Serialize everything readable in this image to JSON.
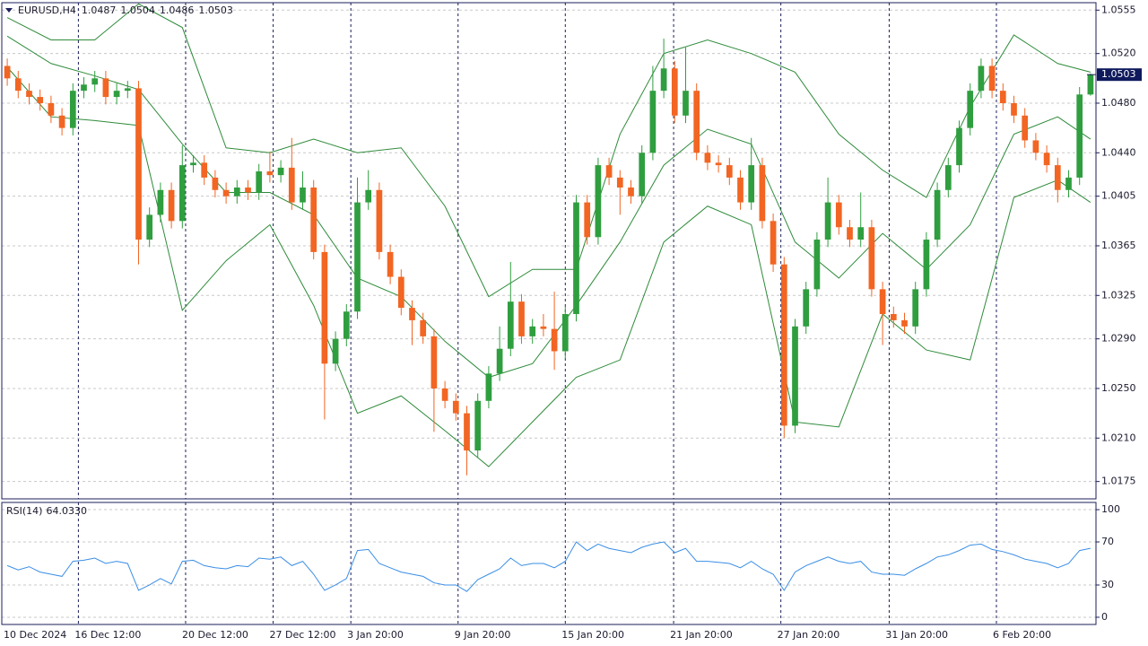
{
  "chart_data": [
    {
      "type": "candlestick",
      "title": "EURUSD,H4",
      "x": [
        0,
        1,
        2,
        3,
        4,
        5,
        6,
        7,
        8,
        9,
        10,
        11,
        12,
        13,
        14,
        15,
        16,
        17,
        18,
        19,
        20,
        21,
        22,
        23,
        24,
        25,
        26,
        27,
        28,
        29,
        30,
        31,
        32,
        33,
        34,
        35,
        36,
        37,
        38,
        39,
        40,
        41,
        42,
        43,
        44,
        45,
        46,
        47,
        48,
        49,
        50,
        51,
        52,
        53,
        54,
        55,
        56,
        57,
        58,
        59,
        60,
        61,
        62,
        63,
        64,
        65,
        66,
        67,
        68,
        69,
        70,
        71,
        72,
        73,
        74,
        75,
        76,
        77,
        78,
        79,
        80,
        81,
        82,
        83,
        84,
        85,
        86,
        87,
        88,
        89,
        90,
        91,
        92,
        93,
        94,
        95,
        96,
        97,
        98,
        99
      ],
      "open": [
        1.051,
        1.05,
        1.049,
        1.0485,
        1.048,
        1.047,
        1.046,
        1.049,
        1.0495,
        1.05,
        1.0485,
        1.049,
        1.0492,
        1.037,
        1.039,
        1.041,
        1.0385,
        1.043,
        1.0432,
        1.042,
        1.041,
        1.0405,
        1.0412,
        1.0408,
        1.0425,
        1.0422,
        1.0428,
        1.04,
        1.0412,
        1.036,
        1.027,
        1.029,
        1.0312,
        1.04,
        1.041,
        1.036,
        1.034,
        1.0315,
        1.0305,
        1.0292,
        1.025,
        1.024,
        1.023,
        1.02,
        1.024,
        1.0262,
        1.0282,
        1.032,
        1.0292,
        1.03,
        1.0298,
        1.028,
        1.031,
        1.04,
        1.0372,
        1.043,
        1.042,
        1.0412,
        1.0405,
        1.044,
        1.049,
        1.0508,
        1.047,
        1.049,
        1.044,
        1.0432,
        1.043,
        1.042,
        1.04,
        1.043,
        1.0385,
        1.035,
        1.022,
        1.03,
        1.033,
        1.037,
        1.04,
        1.038,
        1.037,
        1.038,
        1.033,
        1.031,
        1.0305,
        1.03,
        1.033,
        1.037,
        1.041,
        1.043,
        1.046,
        1.049,
        1.051,
        1.049,
        1.048,
        1.047,
        1.045,
        1.044,
        1.043,
        1.041,
        1.042,
        1.0487
      ],
      "high": [
        1.0516,
        1.0506,
        1.0496,
        1.0491,
        1.0486,
        1.0476,
        1.0496,
        1.0501,
        1.0506,
        1.0506,
        1.0496,
        1.0498,
        1.0498,
        1.0396,
        1.0416,
        1.0416,
        1.0446,
        1.0438,
        1.0438,
        1.0426,
        1.0416,
        1.0418,
        1.0418,
        1.0431,
        1.0441,
        1.0434,
        1.0452,
        1.0425,
        1.0418,
        1.0366,
        1.0296,
        1.0318,
        1.042,
        1.0426,
        1.0416,
        1.0366,
        1.0346,
        1.0321,
        1.0311,
        1.0298,
        1.0256,
        1.0246,
        1.0236,
        1.0246,
        1.0268,
        1.03,
        1.0352,
        1.0326,
        1.0306,
        1.031,
        1.0328,
        1.0316,
        1.0406,
        1.0406,
        1.0436,
        1.0436,
        1.0426,
        1.0418,
        1.0446,
        1.051,
        1.0532,
        1.0514,
        1.0525,
        1.0496,
        1.0446,
        1.0438,
        1.0436,
        1.0426,
        1.0452,
        1.0436,
        1.0391,
        1.0356,
        1.0306,
        1.0336,
        1.0376,
        1.042,
        1.0406,
        1.0386,
        1.0408,
        1.0386,
        1.0336,
        1.0316,
        1.0311,
        1.0336,
        1.0376,
        1.0416,
        1.0436,
        1.0466,
        1.0496,
        1.0516,
        1.0516,
        1.0496,
        1.0486,
        1.0476,
        1.0456,
        1.0446,
        1.0436,
        1.0426,
        1.0493,
        1.0504
      ],
      "low": [
        1.0494,
        1.0484,
        1.0479,
        1.0474,
        1.0464,
        1.0454,
        1.0454,
        1.0484,
        1.0489,
        1.0479,
        1.0479,
        1.0484,
        1.035,
        1.0364,
        1.0384,
        1.0379,
        1.0379,
        1.0424,
        1.0414,
        1.0404,
        1.0399,
        1.0399,
        1.0402,
        1.0402,
        1.0416,
        1.0416,
        1.0394,
        1.0394,
        1.0354,
        1.0225,
        1.0264,
        1.0284,
        1.0306,
        1.0394,
        1.0354,
        1.0334,
        1.0309,
        1.0285,
        1.0286,
        1.0215,
        1.0234,
        1.0224,
        1.018,
        1.0194,
        1.0234,
        1.0256,
        1.0276,
        1.0286,
        1.0286,
        1.0292,
        1.0265,
        1.0274,
        1.0304,
        1.0366,
        1.0366,
        1.0414,
        1.039,
        1.0399,
        1.0399,
        1.0434,
        1.0484,
        1.0464,
        1.0464,
        1.0434,
        1.0426,
        1.0424,
        1.0414,
        1.0394,
        1.0394,
        1.0379,
        1.0344,
        1.021,
        1.0214,
        1.0294,
        1.0324,
        1.0364,
        1.0374,
        1.0364,
        1.0364,
        1.0324,
        1.0285,
        1.0299,
        1.0294,
        1.0294,
        1.0324,
        1.0364,
        1.0404,
        1.0424,
        1.0454,
        1.0484,
        1.0484,
        1.0474,
        1.0464,
        1.0444,
        1.0434,
        1.0424,
        1.04,
        1.0404,
        1.0414,
        1.0486
      ],
      "close": [
        1.05,
        1.049,
        1.0485,
        1.048,
        1.047,
        1.046,
        1.049,
        1.0495,
        1.05,
        1.0485,
        1.049,
        1.0492,
        1.037,
        1.039,
        1.041,
        1.0385,
        1.043,
        1.0432,
        1.042,
        1.041,
        1.0405,
        1.0412,
        1.0408,
        1.0425,
        1.0422,
        1.0428,
        1.04,
        1.0412,
        1.036,
        1.027,
        1.029,
        1.0312,
        1.04,
        1.041,
        1.036,
        1.034,
        1.0315,
        1.0305,
        1.0292,
        1.025,
        1.024,
        1.023,
        1.02,
        1.024,
        1.0262,
        1.0282,
        1.032,
        1.0292,
        1.03,
        1.0298,
        1.028,
        1.031,
        1.04,
        1.0372,
        1.043,
        1.042,
        1.0412,
        1.0405,
        1.044,
        1.049,
        1.0508,
        1.047,
        1.049,
        1.044,
        1.0432,
        1.043,
        1.042,
        1.04,
        1.043,
        1.0385,
        1.035,
        1.022,
        1.03,
        1.033,
        1.037,
        1.04,
        1.038,
        1.037,
        1.038,
        1.033,
        1.031,
        1.0305,
        1.03,
        1.033,
        1.037,
        1.041,
        1.043,
        1.046,
        1.049,
        1.051,
        1.049,
        1.048,
        1.047,
        1.045,
        1.044,
        1.043,
        1.041,
        1.042,
        1.0487,
        1.0503
      ],
      "up_color": "#2f9e3f",
      "down_color": "#f26522",
      "bands": {
        "color": "#2e8b3a",
        "x": [
          0,
          4,
          8,
          12,
          16,
          20,
          24,
          28,
          32,
          36,
          40,
          44,
          48,
          52,
          56,
          60,
          64,
          68,
          72,
          76,
          80,
          84,
          88,
          92,
          96,
          99
        ],
        "upper": [
          1.0549,
          1.0531,
          1.0531,
          1.056,
          1.0541,
          1.0444,
          1.044,
          1.0451,
          1.044,
          1.0444,
          1.0397,
          1.0324,
          1.0346,
          1.0346,
          1.0455,
          1.052,
          1.0531,
          1.052,
          1.0505,
          1.0455,
          1.0426,
          1.0404,
          1.0477,
          1.0535,
          1.0512,
          1.0505
        ],
        "middle": [
          1.0534,
          1.0512,
          1.0502,
          1.0491,
          1.0447,
          1.0408,
          1.0408,
          1.039,
          1.0339,
          1.0324,
          1.0288,
          1.0259,
          1.027,
          1.0317,
          1.0368,
          1.043,
          1.0459,
          1.0447,
          1.0368,
          1.0339,
          1.0375,
          1.0346,
          1.0382,
          1.0455,
          1.0469,
          1.0451
        ],
        "lower": [
          1.0509,
          1.0469,
          1.0466,
          1.0462,
          1.0313,
          1.0353,
          1.0382,
          1.0317,
          1.023,
          1.0244,
          1.0216,
          1.0187,
          1.0223,
          1.0259,
          1.0273,
          1.0368,
          1.0397,
          1.0382,
          1.0223,
          1.0219,
          1.031,
          1.0281,
          1.0273,
          1.0404,
          1.0418,
          1.04
        ]
      },
      "xlim": [
        -0.5,
        99.5
      ],
      "xticks": [
        {
          "value": -0.5,
          "label": "10 Dec 2024"
        },
        {
          "value": 6.5,
          "label": "16 Dec 12:00"
        },
        {
          "value": 16.3,
          "label": "20 Dec 12:00"
        },
        {
          "value": 24.3,
          "label": "27 Dec 12:00"
        },
        {
          "value": 31.4,
          "label": "3 Jan 20:00"
        },
        {
          "value": 41.2,
          "label": "9 Jan 20:00"
        },
        {
          "value": 51,
          "label": "15 Jan 20:00"
        },
        {
          "value": 60.9,
          "label": "21 Jan 20:00"
        },
        {
          "value": 70.7,
          "label": "27 Jan 20:00"
        },
        {
          "value": 80.6,
          "label": "31 Jan 20:00"
        },
        {
          "value": 90.4,
          "label": "6 Feb 20:00"
        }
      ],
      "ylim": [
        1.0161,
        1.0561
      ],
      "yticks": [
        1.0555,
        {
          "value": 1.052,
          "label": "1.0520"
        },
        {
          "value": 1.048,
          "label": "1.0480"
        },
        {
          "value": 1.044,
          "label": "1.0440"
        },
        1.0405,
        1.0365,
        1.0325,
        {
          "value": 1.029,
          "label": "1.0290"
        },
        {
          "value": 1.025,
          "label": "1.0250"
        },
        {
          "value": 1.021,
          "label": "1.0210"
        },
        1.0175
      ],
      "grid": true
    },
    {
      "type": "line",
      "title": "RSI(14)",
      "color": "#3a8ee6",
      "values": [
        48,
        44,
        47,
        42,
        40,
        38,
        52,
        53,
        55,
        50,
        52,
        50,
        25,
        30,
        36,
        31,
        52,
        53,
        48,
        46,
        45,
        48,
        47,
        55,
        54,
        56,
        48,
        52,
        40,
        25,
        30,
        36,
        62,
        63,
        50,
        46,
        42,
        40,
        38,
        32,
        30,
        30,
        24,
        35,
        40,
        45,
        55,
        48,
        50,
        50,
        46,
        52,
        70,
        62,
        68,
        64,
        62,
        60,
        65,
        68,
        70,
        60,
        64,
        52,
        52,
        51,
        50,
        46,
        52,
        45,
        40,
        25,
        42,
        48,
        52,
        56,
        52,
        50,
        52,
        42,
        40,
        40,
        39,
        45,
        50,
        56,
        58,
        62,
        67,
        68,
        63,
        61,
        58,
        54,
        52,
        50,
        46,
        50,
        62,
        64.033
      ],
      "value_label": "64.0330",
      "ylim": [
        -6.7,
        106.7
      ],
      "yticks": [
        100,
        70,
        30,
        0
      ],
      "grid": true
    }
  ]
}
